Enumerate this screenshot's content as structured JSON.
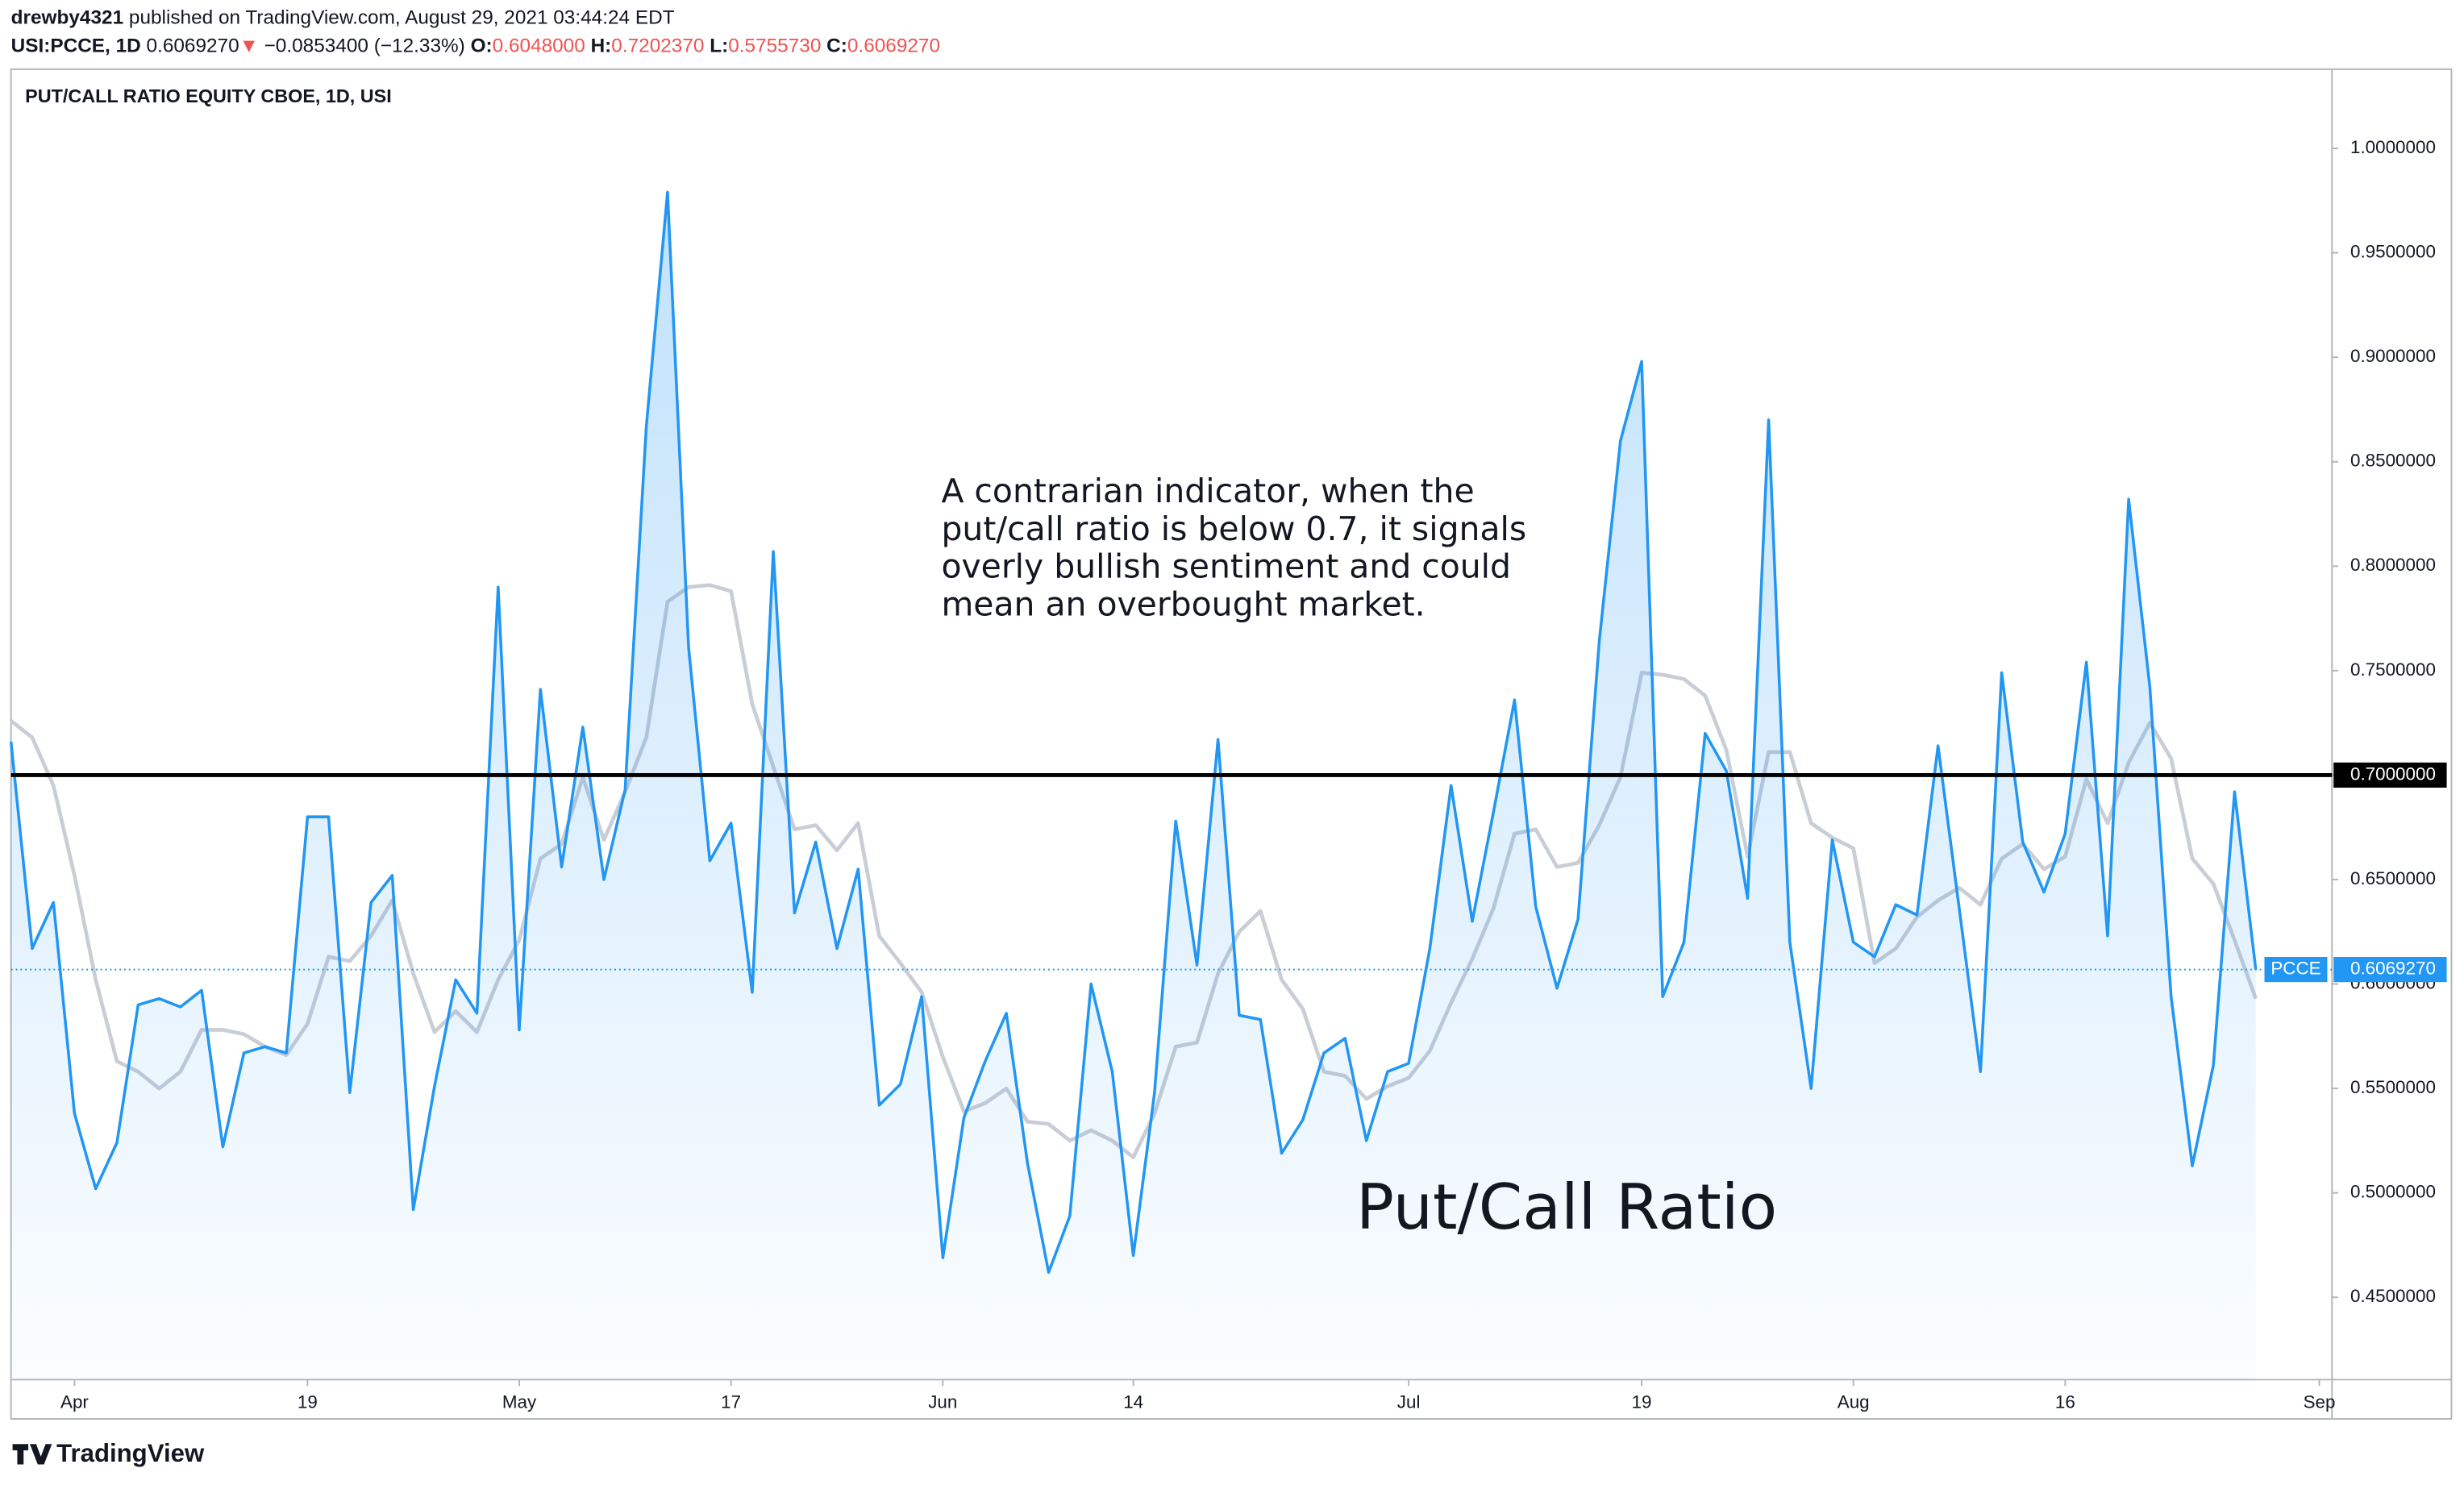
{
  "header": {
    "author": "drewby4321",
    "published": "published on TradingView.com, August 29, 2021 03:44:24 EDT",
    "symbol": "USI:PCCE, 1D",
    "last": "0.6069270",
    "arrow": "▼",
    "change": "−0.0853400 (−12.33%)",
    "o_label": "O:",
    "o": "0.6048000",
    "h_label": "H:",
    "h": "0.7202370",
    "l_label": "L:",
    "l": "0.5755730",
    "c_label": "C:",
    "c": "0.6069270"
  },
  "footer": {
    "brand": "TradingView"
  },
  "chart_data": {
    "type": "line",
    "title": "PUT/CALL RATIO EQUITY CBOE, 1D, USI",
    "annotation": [
      "A contrarian indicator, when the",
      "put/call ratio is below 0.7, it signals",
      "overly bullish sentiment and could",
      "mean an overbought market."
    ],
    "label": "Put/Call Ratio",
    "series": [
      {
        "name": "PCCE",
        "color": "#2196f3",
        "area": true,
        "values": [
          0.716,
          0.617,
          0.639,
          0.538,
          0.502,
          0.524,
          0.59,
          0.593,
          0.589,
          0.597,
          0.522,
          0.567,
          0.57,
          0.567,
          0.68,
          0.68,
          0.548,
          0.639,
          0.652,
          0.492,
          0.551,
          0.602,
          0.586,
          0.79,
          0.578,
          0.741,
          0.656,
          0.723,
          0.65,
          0.693,
          0.867,
          0.979,
          0.761,
          0.659,
          0.677,
          0.596,
          0.807,
          0.634,
          0.668,
          0.617,
          0.655,
          0.542,
          0.552,
          0.594,
          0.469,
          0.536,
          0.563,
          0.586,
          0.514,
          0.462,
          0.489,
          0.6,
          0.558,
          0.47,
          0.548,
          0.678,
          0.609,
          0.717,
          0.585,
          0.583,
          0.519,
          0.535,
          0.567,
          0.574,
          0.525,
          0.558,
          0.562,
          0.617,
          0.695,
          0.63,
          0.682,
          0.736,
          0.637,
          0.598,
          0.631,
          0.764,
          0.86,
          0.898,
          0.594,
          0.62,
          0.72,
          0.702,
          0.641,
          0.87,
          0.62,
          0.55,
          0.669,
          0.62,
          0.613,
          0.638,
          0.633,
          0.714,
          0.636,
          0.558,
          0.749,
          0.668,
          0.644,
          0.672,
          0.754,
          0.623,
          0.832,
          0.742,
          0.594,
          0.513,
          0.561,
          0.692,
          0.606927
        ]
      },
      {
        "color": "#c9cdd6",
        "values": [
          0.726,
          0.718,
          0.695,
          0.652,
          0.602,
          0.563,
          0.558,
          0.55,
          0.558,
          0.578,
          0.578,
          0.576,
          0.57,
          0.566,
          0.581,
          0.613,
          0.611,
          0.623,
          0.64,
          0.605,
          0.577,
          0.587,
          0.577,
          0.602,
          0.621,
          0.66,
          0.667,
          0.699,
          0.669,
          0.692,
          0.718,
          0.783,
          0.79,
          0.791,
          0.788,
          0.734,
          0.704,
          0.674,
          0.676,
          0.664,
          0.677,
          0.623,
          0.61,
          0.596,
          0.565,
          0.539,
          0.543,
          0.55,
          0.534,
          0.533,
          0.525,
          0.53,
          0.525,
          0.517,
          0.538,
          0.57,
          0.572,
          0.605,
          0.625,
          0.635,
          0.602,
          0.588,
          0.558,
          0.556,
          0.545,
          0.551,
          0.555,
          0.568,
          0.591,
          0.612,
          0.636,
          0.672,
          0.674,
          0.656,
          0.658,
          0.676,
          0.699,
          0.749,
          0.748,
          0.746,
          0.738,
          0.712,
          0.661,
          0.711,
          0.711,
          0.677,
          0.67,
          0.665,
          0.61,
          0.617,
          0.632,
          0.64,
          0.646,
          0.638,
          0.66,
          0.667,
          0.655,
          0.661,
          0.698,
          0.677,
          0.706,
          0.725,
          0.708,
          0.66,
          0.648,
          0.621,
          0.593
        ]
      }
    ],
    "last_label": "0.6069270",
    "hline": {
      "value": 0.7,
      "label": "0.7000000",
      "color": "#000000"
    },
    "xlim": [
      0,
      109.6
    ],
    "xticks": [
      {
        "value": 3,
        "label": "Apr"
      },
      {
        "value": 14,
        "label": "19"
      },
      {
        "value": 24,
        "label": "May"
      },
      {
        "value": 34,
        "label": "17"
      },
      {
        "value": 44,
        "label": "Jun"
      },
      {
        "value": 53,
        "label": "14"
      },
      {
        "value": 66,
        "label": "Jul"
      },
      {
        "value": 77,
        "label": "19"
      },
      {
        "value": 87,
        "label": "Aug"
      },
      {
        "value": 97,
        "label": "16"
      },
      {
        "value": 109,
        "label": "Sep"
      }
    ],
    "ylim": [
      0.4106,
      1.0379
    ],
    "yticks": [
      {
        "value": 0.45,
        "label": "0.4500000"
      },
      {
        "value": 0.5,
        "label": "0.5000000"
      },
      {
        "value": 0.55,
        "label": "0.5500000"
      },
      {
        "value": 0.6,
        "label": "0.6000000"
      },
      {
        "value": 0.65,
        "label": "0.6500000"
      },
      {
        "value": 0.7,
        "label": "0.7000000"
      },
      {
        "value": 0.75,
        "label": "0.7500000"
      },
      {
        "value": 0.8,
        "label": "0.8000000"
      },
      {
        "value": 0.85,
        "label": "0.8500000"
      },
      {
        "value": 0.9,
        "label": "0.9000000"
      },
      {
        "value": 0.95,
        "label": "0.9500000"
      },
      {
        "value": 1,
        "label": "1.0000000"
      }
    ]
  }
}
